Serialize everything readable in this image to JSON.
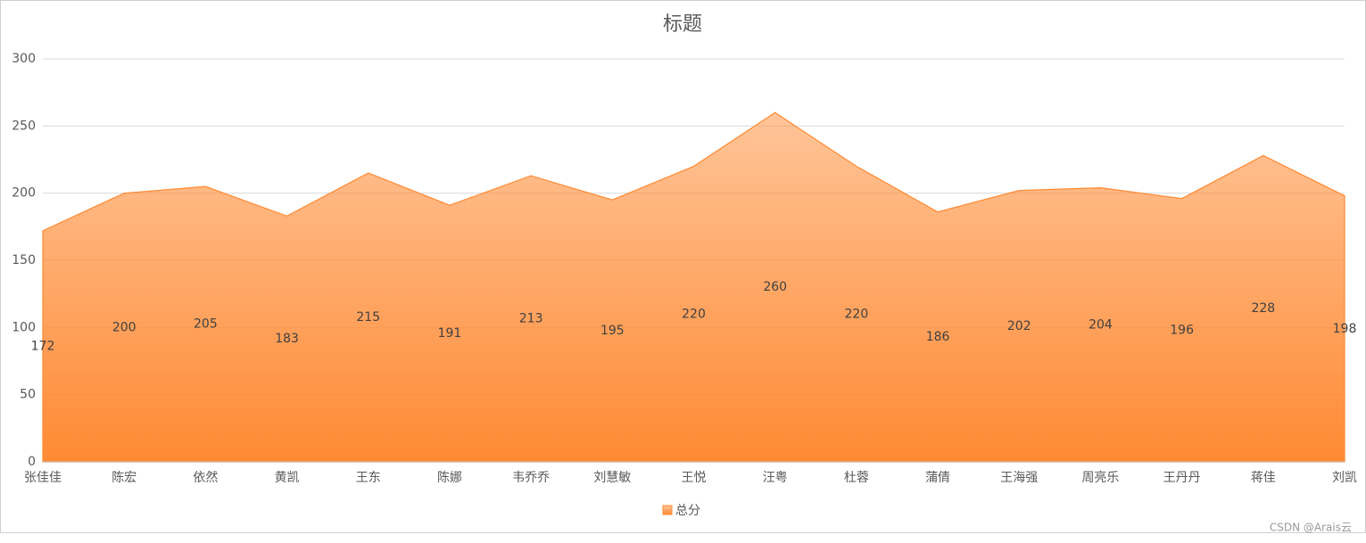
{
  "chart_data": {
    "type": "area",
    "title": "标题",
    "categories": [
      "张佳佳",
      "陈宏",
      "依然",
      "黄凯",
      "王东",
      "陈娜",
      "韦乔乔",
      "刘慧敏",
      "王悦",
      "汪粤",
      "杜蓉",
      "蒲倩",
      "王海强",
      "周亮乐",
      "王丹丹",
      "蒋佳",
      "刘凯"
    ],
    "series": [
      {
        "name": "总分",
        "color": "#ff8a33",
        "values": [
          172,
          200,
          205,
          183,
          215,
          191,
          213,
          195,
          220,
          260,
          220,
          186,
          202,
          204,
          196,
          228,
          198
        ]
      }
    ],
    "ylim": [
      0,
      300
    ],
    "yticks": [
      0,
      50,
      100,
      150,
      200,
      250,
      300
    ],
    "grid": true,
    "legend": "bottom",
    "watermark": "CSDN @Arais云"
  }
}
